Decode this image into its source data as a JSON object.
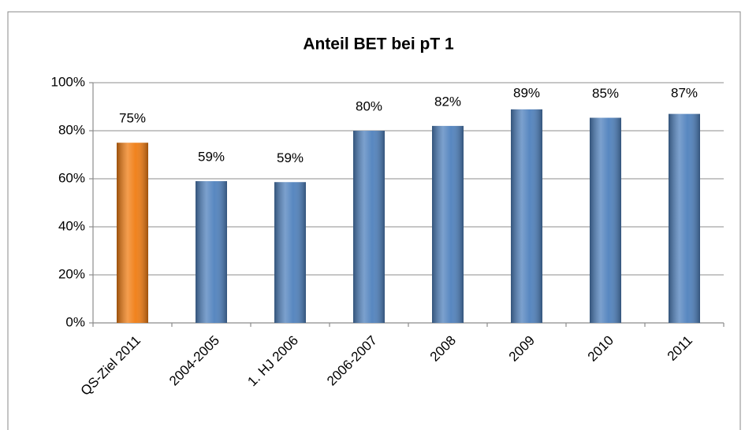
{
  "chart_data": {
    "type": "bar",
    "title": "Anteil BET bei pT 1",
    "categories": [
      "QS-Ziel 2011",
      "2004-2005",
      "1. HJ 2006",
      "2006-2007",
      "2008",
      "2009",
      "2010",
      "2011"
    ],
    "values": [
      75,
      59,
      58.6,
      80,
      82,
      88.9,
      85.4,
      87
    ],
    "value_labels": [
      "75%",
      "59%",
      "59%",
      "80%",
      "82%",
      "89%",
      "85%",
      "87%"
    ],
    "colors": [
      "#f07c12",
      "#4f81bd",
      "#4f81bd",
      "#4f81bd",
      "#4f81bd",
      "#4f81bd",
      "#4f81bd",
      "#4f81bd"
    ],
    "ylim": [
      0,
      100
    ],
    "yticks": [
      {
        "value": 0,
        "label": "0%"
      },
      {
        "value": 20,
        "label": "20%"
      },
      {
        "value": 40,
        "label": "40%"
      },
      {
        "value": 60,
        "label": "60%"
      },
      {
        "value": 80,
        "label": "80%"
      },
      {
        "value": 100,
        "label": "100%"
      }
    ],
    "grid": true
  }
}
